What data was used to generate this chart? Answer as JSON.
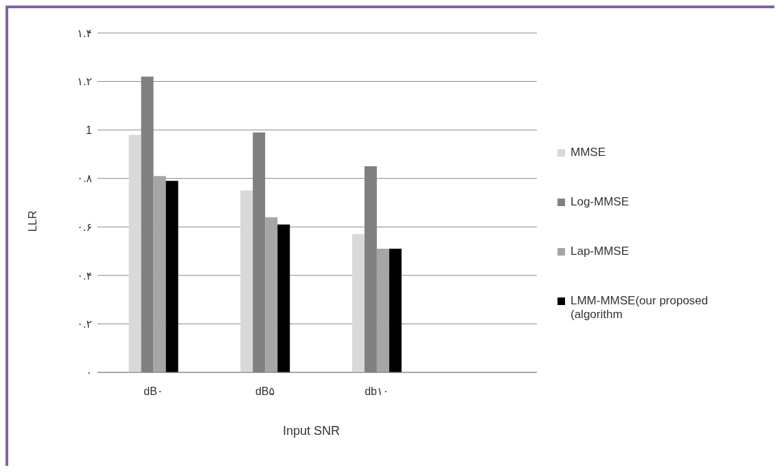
{
  "chart_data": {
    "type": "bar",
    "xlabel": "Input SNR",
    "ylabel": "LLR",
    "categories": [
      "dB۰",
      "dB۵",
      "db۱۰"
    ],
    "series": [
      {
        "name": "MMSE",
        "color": "#d9d9d9",
        "values": [
          0.98,
          0.75,
          0.57
        ]
      },
      {
        "name": "Log-MMSE",
        "color": "#808080",
        "values": [
          1.22,
          0.99,
          0.85
        ]
      },
      {
        "name": "Lap-MMSE",
        "color": "#a6a6a6",
        "values": [
          0.81,
          0.64,
          0.51
        ]
      },
      {
        "name": "LMM-MMSE(our proposed (algorithm",
        "color": "#000000",
        "values": [
          0.79,
          0.61,
          0.51
        ]
      }
    ],
    "ylim": [
      0,
      1.4
    ],
    "yticks": [
      {
        "value": 0,
        "label": "۰"
      },
      {
        "value": 0.2,
        "label": "۰.۲"
      },
      {
        "value": 0.4,
        "label": "۰.۴"
      },
      {
        "value": 0.6,
        "label": "۰.۶"
      },
      {
        "value": 0.8,
        "label": "۰.۸"
      },
      1,
      {
        "value": 1.2,
        "label": "۱.۲"
      },
      {
        "value": 1.4,
        "label": "۱.۴"
      }
    ],
    "grid": "y",
    "legend": "right"
  }
}
